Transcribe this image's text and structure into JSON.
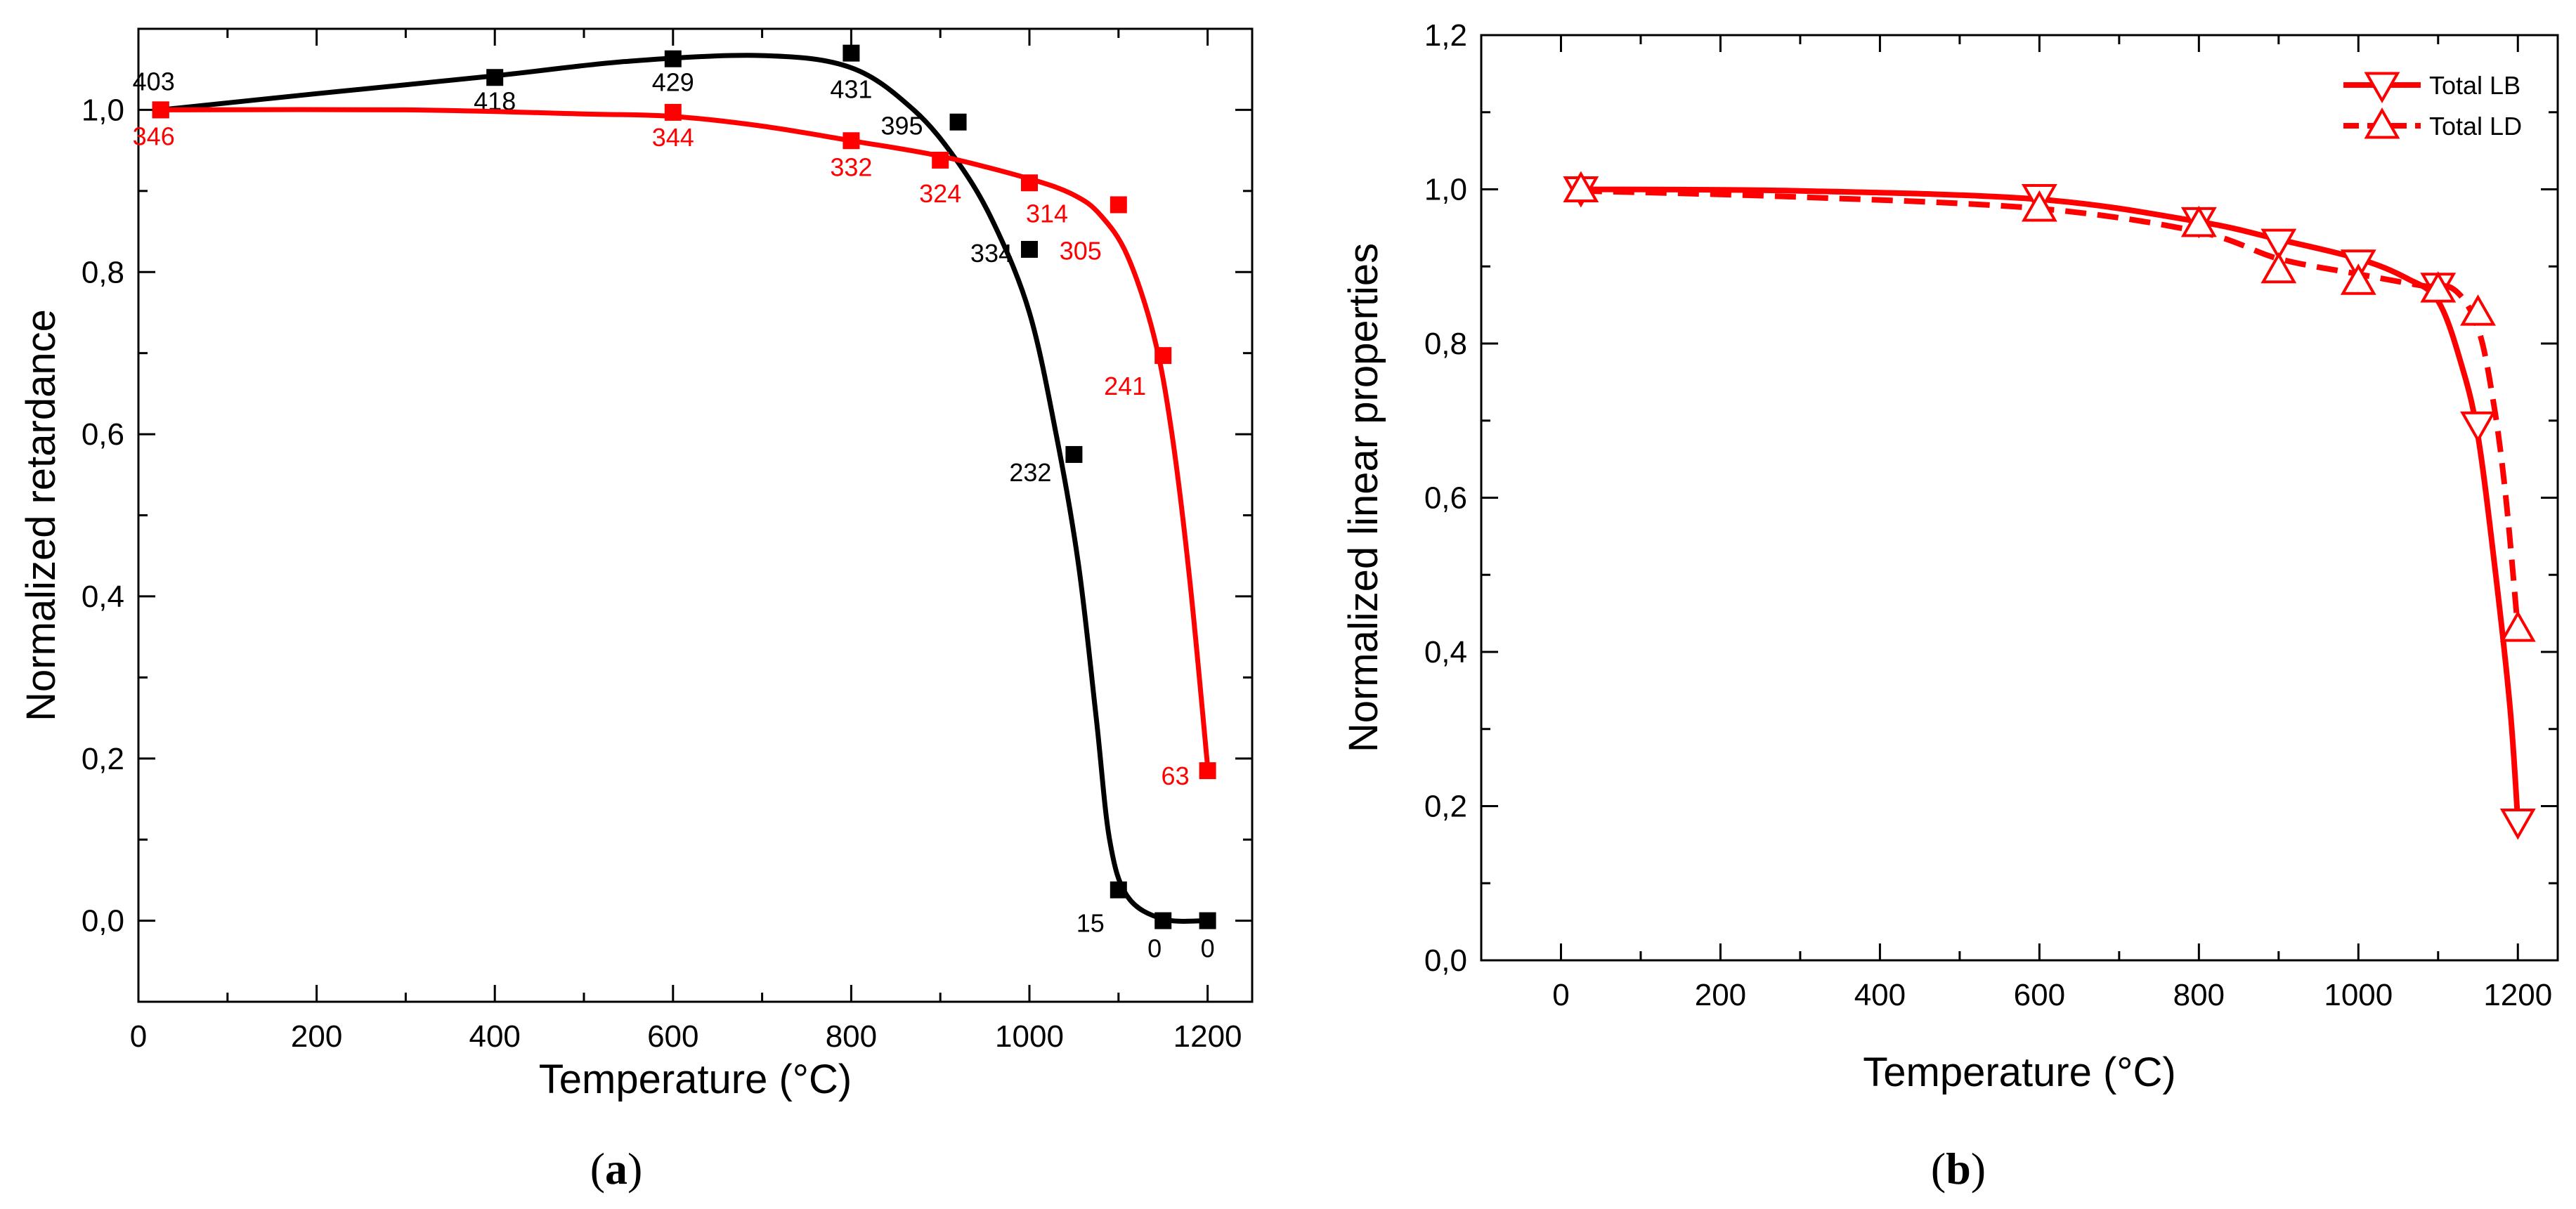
{
  "chart_data": [
    {
      "type": "line",
      "panel": "(a)",
      "panel_letter": "a",
      "xlabel": "Temperature (°C)",
      "ylabel": "Normalized retardance",
      "xlim": [
        0,
        1250
      ],
      "ylim": [
        -0.1,
        1.1
      ],
      "x_ticks": [
        0,
        200,
        400,
        600,
        800,
        1000,
        1200
      ],
      "x_tick_labels": [
        "0",
        "200",
        "400",
        "600",
        "800",
        "1000",
        "1200"
      ],
      "y_ticks": [
        0.0,
        0.2,
        0.4,
        0.6,
        0.8,
        1.0
      ],
      "y_tick_labels": [
        "0,0",
        "0,2",
        "0,4",
        "0,6",
        "0,8",
        "1,0"
      ],
      "series": [
        {
          "name": "black",
          "color": "#000000",
          "marker": "square",
          "points": [
            [
              25,
              1.0
            ],
            [
              400,
              1.04
            ],
            [
              600,
              1.063
            ],
            [
              800,
              1.07
            ],
            [
              920,
              0.985
            ],
            [
              1000,
              0.828
            ],
            [
              1050,
              0.575
            ],
            [
              1100,
              0.038
            ],
            [
              1150,
              0.0
            ],
            [
              1200,
              0.0
            ]
          ],
          "labels": [
            "403",
            "418",
            "429",
            "431",
            "395",
            "334",
            "232",
            "15",
            "0",
            "0"
          ],
          "curve": [
            [
              25,
              1.0
            ],
            [
              200,
              1.02
            ],
            [
              400,
              1.042
            ],
            [
              550,
              1.06
            ],
            [
              700,
              1.067
            ],
            [
              800,
              1.052
            ],
            [
              870,
              1.0
            ],
            [
              920,
              0.935
            ],
            [
              960,
              0.86
            ],
            [
              1000,
              0.75
            ],
            [
              1030,
              0.6
            ],
            [
              1055,
              0.44
            ],
            [
              1075,
              0.25
            ],
            [
              1090,
              0.1
            ],
            [
              1110,
              0.03
            ],
            [
              1150,
              0.002
            ],
            [
              1200,
              0.0
            ]
          ]
        },
        {
          "name": "red",
          "color": "#ff0000",
          "marker": "square",
          "points": [
            [
              25,
              1.0
            ],
            [
              600,
              0.997
            ],
            [
              800,
              0.962
            ],
            [
              900,
              0.938
            ],
            [
              1000,
              0.91
            ],
            [
              1100,
              0.883
            ],
            [
              1150,
              0.697
            ],
            [
              1200,
              0.185
            ]
          ],
          "labels": [
            "346",
            "344",
            "332",
            "324",
            "314",
            "305",
            "241",
            "63"
          ],
          "curve": [
            [
              25,
              1.0
            ],
            [
              300,
              1.0
            ],
            [
              500,
              0.995
            ],
            [
              600,
              0.992
            ],
            [
              700,
              0.98
            ],
            [
              800,
              0.962
            ],
            [
              900,
              0.943
            ],
            [
              1000,
              0.915
            ],
            [
              1050,
              0.895
            ],
            [
              1080,
              0.87
            ],
            [
              1110,
              0.82
            ],
            [
              1140,
              0.72
            ],
            [
              1160,
              0.6
            ],
            [
              1180,
              0.42
            ],
            [
              1200,
              0.19
            ]
          ]
        }
      ]
    },
    {
      "type": "line",
      "panel": "(b)",
      "panel_letter": "b",
      "xlabel": "Temperature (°C)",
      "ylabel": "Normalized linear properties",
      "xlim": [
        -100,
        1250
      ],
      "ylim": [
        0.0,
        1.2
      ],
      "x_ticks": [
        0,
        200,
        400,
        600,
        800,
        1000,
        1200
      ],
      "x_tick_labels": [
        "0",
        "200",
        "400",
        "600",
        "800",
        "1000",
        "1200"
      ],
      "y_ticks": [
        0.0,
        0.2,
        0.4,
        0.6,
        0.8,
        1.0,
        1.2
      ],
      "y_tick_labels": [
        "0,0",
        "0,2",
        "0,4",
        "0,6",
        "0,8",
        "1,0",
        "1,2"
      ],
      "legend": {
        "position": "top-right",
        "entries": [
          "Total LB",
          "Total LD"
        ]
      },
      "series": [
        {
          "name": "Total LB",
          "color": "#ff0000",
          "line_style": "solid",
          "marker": "triangle-down-open",
          "points": [
            [
              25,
              1.0
            ],
            [
              600,
              0.99
            ],
            [
              800,
              0.96
            ],
            [
              900,
              0.932
            ],
            [
              1000,
              0.905
            ],
            [
              1100,
              0.875
            ],
            [
              1150,
              0.695
            ],
            [
              1200,
              0.18
            ]
          ],
          "curve": [
            [
              25,
              1.0
            ],
            [
              300,
              0.998
            ],
            [
              600,
              0.987
            ],
            [
              800,
              0.958
            ],
            [
              900,
              0.935
            ],
            [
              1000,
              0.91
            ],
            [
              1060,
              0.885
            ],
            [
              1100,
              0.855
            ],
            [
              1130,
              0.77
            ],
            [
              1150,
              0.68
            ],
            [
              1170,
              0.52
            ],
            [
              1190,
              0.33
            ],
            [
              1200,
              0.18
            ]
          ]
        },
        {
          "name": "Total LD",
          "color": "#ff0000",
          "line_style": "dashed",
          "marker": "triangle-up-open",
          "points": [
            [
              25,
              1.0
            ],
            [
              600,
              0.975
            ],
            [
              800,
              0.955
            ],
            [
              900,
              0.895
            ],
            [
              1000,
              0.88
            ],
            [
              1100,
              0.87
            ],
            [
              1150,
              0.84
            ],
            [
              1200,
              0.43
            ]
          ],
          "curve": [
            [
              25,
              0.998
            ],
            [
              300,
              0.99
            ],
            [
              600,
              0.975
            ],
            [
              800,
              0.945
            ],
            [
              900,
              0.91
            ],
            [
              1000,
              0.89
            ],
            [
              1080,
              0.875
            ],
            [
              1120,
              0.87
            ],
            [
              1150,
              0.82
            ],
            [
              1170,
              0.72
            ],
            [
              1185,
              0.6
            ],
            [
              1200,
              0.43
            ]
          ]
        }
      ]
    }
  ]
}
